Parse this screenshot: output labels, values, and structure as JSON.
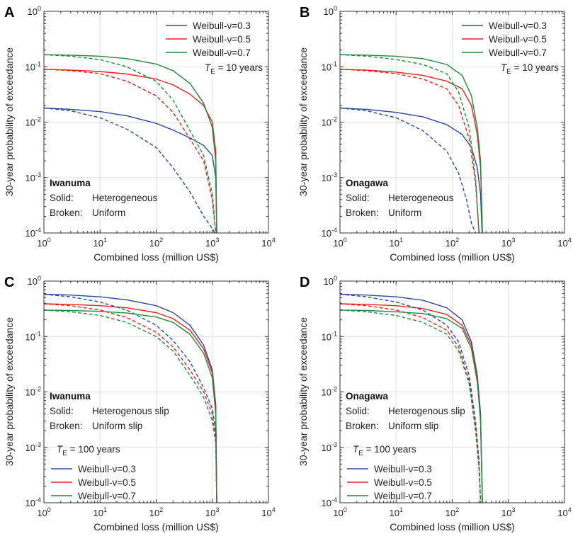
{
  "figure": {
    "ylabel": "30-year probability of exceedance",
    "xlabel": "Combined loss (million US$)"
  },
  "colors": {
    "Weibull-ν=0.3": "#2b4a9c",
    "Weibull-ν=0.5": "#e3231e",
    "Weibull-ν=0.7": "#1f8a3b"
  },
  "chart_data": [
    {
      "panel": "A",
      "type": "line",
      "site": "Iwanuma",
      "xscale": "log",
      "yscale": "log",
      "xlim": [
        1,
        10000
      ],
      "ylim": [
        0.0001,
        1
      ],
      "xlabel": "Combined loss (million US$)",
      "ylabel": "30-year probability of exceedance",
      "xticks": [
        {
          "base": "10",
          "exp": "0"
        },
        {
          "base": "10",
          "exp": "1"
        },
        {
          "base": "10",
          "exp": "2"
        },
        {
          "base": "10",
          "exp": "3"
        },
        {
          "base": "10",
          "exp": "4"
        }
      ],
      "yticks": [
        {
          "base": "10",
          "exp": "-4"
        },
        {
          "base": "10",
          "exp": "-3"
        },
        {
          "base": "10",
          "exp": "-2"
        },
        {
          "base": "10",
          "exp": "-1"
        },
        {
          "base": "10",
          "exp": "0"
        }
      ],
      "te": {
        "prefix": "T",
        "sub": "E",
        "rest": " = 10 years"
      },
      "notes": [
        {
          "key": "Solid:",
          "value": "Heterogeneous"
        },
        {
          "key": "Broken:",
          "value": "Uniform"
        }
      ],
      "legend_position": "top-right",
      "series": [
        {
          "name": "Weibull-ν=0.3",
          "style": "solid",
          "x": [
            1,
            3,
            10,
            30,
            100,
            200,
            400,
            700,
            1000,
            1150,
            1200
          ],
          "y": [
            0.018,
            0.017,
            0.0155,
            0.013,
            0.0095,
            0.0072,
            0.0052,
            0.0038,
            0.0025,
            0.001,
            0.0001
          ]
        },
        {
          "name": "Weibull-ν=0.5",
          "style": "solid",
          "x": [
            1,
            3,
            10,
            30,
            100,
            200,
            400,
            700,
            1000,
            1150,
            1200
          ],
          "y": [
            0.09,
            0.087,
            0.082,
            0.074,
            0.06,
            0.047,
            0.032,
            0.02,
            0.01,
            0.003,
            0.0001
          ]
        },
        {
          "name": "Weibull-ν=0.7",
          "style": "solid",
          "x": [
            1,
            3,
            10,
            30,
            100,
            200,
            400,
            700,
            1000,
            1150,
            1200
          ],
          "y": [
            0.165,
            0.162,
            0.155,
            0.14,
            0.112,
            0.085,
            0.05,
            0.022,
            0.008,
            0.002,
            0.0001
          ]
        },
        {
          "name": "Weibull-ν=0.3",
          "style": "dashed",
          "x": [
            1,
            3,
            10,
            30,
            100,
            200,
            400,
            700,
            1000,
            1100
          ],
          "y": [
            0.018,
            0.016,
            0.012,
            0.0075,
            0.0035,
            0.0015,
            0.00055,
            0.0002,
            0.00012,
            0.0001
          ]
        },
        {
          "name": "Weibull-ν=0.5",
          "style": "dashed",
          "x": [
            1,
            3,
            10,
            30,
            100,
            200,
            400,
            700,
            1000,
            1150
          ],
          "y": [
            0.09,
            0.085,
            0.075,
            0.055,
            0.03,
            0.015,
            0.005,
            0.002,
            0.0004,
            0.0001
          ]
        },
        {
          "name": "Weibull-ν=0.7",
          "style": "dashed",
          "x": [
            1,
            3,
            10,
            30,
            100,
            200,
            400,
            700,
            1000,
            1150
          ],
          "y": [
            0.165,
            0.155,
            0.135,
            0.1,
            0.055,
            0.025,
            0.007,
            0.0025,
            0.0005,
            0.0001
          ]
        }
      ]
    },
    {
      "panel": "B",
      "type": "line",
      "site": "Onagawa",
      "xscale": "log",
      "yscale": "log",
      "xlim": [
        1,
        10000
      ],
      "ylim": [
        0.0001,
        1
      ],
      "xlabel": "Combined loss (million US$)",
      "ylabel": "30-year probability of exceedance",
      "xticks": [
        {
          "base": "10",
          "exp": "0"
        },
        {
          "base": "10",
          "exp": "1"
        },
        {
          "base": "10",
          "exp": "2"
        },
        {
          "base": "10",
          "exp": "3"
        },
        {
          "base": "10",
          "exp": "4"
        }
      ],
      "yticks": [
        {
          "base": "10",
          "exp": "-4"
        },
        {
          "base": "10",
          "exp": "-3"
        },
        {
          "base": "10",
          "exp": "-2"
        },
        {
          "base": "10",
          "exp": "-1"
        },
        {
          "base": "10",
          "exp": "0"
        }
      ],
      "te": {
        "prefix": "T",
        "sub": "E",
        "rest": " = 10 years"
      },
      "notes": [
        {
          "key": "Solid:",
          "value": "Heterogeneous"
        },
        {
          "key": "Broken:",
          "value": "Uniform"
        }
      ],
      "legend_position": "top-right",
      "series": [
        {
          "name": "Weibull-ν=0.3",
          "style": "solid",
          "x": [
            1,
            3,
            10,
            30,
            80,
            150,
            220,
            280,
            320,
            340
          ],
          "y": [
            0.018,
            0.017,
            0.015,
            0.0125,
            0.009,
            0.006,
            0.0035,
            0.0015,
            0.0005,
            0.0001
          ]
        },
        {
          "name": "Weibull-ν=0.5",
          "style": "solid",
          "x": [
            1,
            3,
            10,
            30,
            80,
            150,
            220,
            280,
            320,
            345
          ],
          "y": [
            0.09,
            0.087,
            0.08,
            0.07,
            0.055,
            0.04,
            0.02,
            0.006,
            0.0015,
            0.0001
          ]
        },
        {
          "name": "Weibull-ν=0.7",
          "style": "solid",
          "x": [
            1,
            3,
            10,
            30,
            80,
            150,
            220,
            280,
            320,
            345
          ],
          "y": [
            0.165,
            0.162,
            0.155,
            0.14,
            0.11,
            0.07,
            0.03,
            0.008,
            0.002,
            0.0001
          ]
        },
        {
          "name": "Weibull-ν=0.3",
          "style": "dashed",
          "x": [
            1,
            3,
            10,
            30,
            80,
            130,
            180,
            220,
            260
          ],
          "y": [
            0.018,
            0.016,
            0.012,
            0.007,
            0.003,
            0.0012,
            0.0004,
            0.00015,
            0.0001
          ]
        },
        {
          "name": "Weibull-ν=0.5",
          "style": "dashed",
          "x": [
            1,
            3,
            10,
            30,
            80,
            130,
            200,
            260,
            300
          ],
          "y": [
            0.09,
            0.085,
            0.075,
            0.06,
            0.04,
            0.02,
            0.005,
            0.0008,
            0.0001
          ]
        },
        {
          "name": "Weibull-ν=0.7",
          "style": "dashed",
          "x": [
            1,
            3,
            10,
            30,
            80,
            130,
            200,
            260,
            300
          ],
          "y": [
            0.165,
            0.155,
            0.135,
            0.11,
            0.075,
            0.035,
            0.008,
            0.001,
            0.0001
          ]
        }
      ]
    },
    {
      "panel": "C",
      "type": "line",
      "site": "Iwanuma",
      "xscale": "log",
      "yscale": "log",
      "xlim": [
        1,
        10000
      ],
      "ylim": [
        0.0001,
        1
      ],
      "xlabel": "Combined loss (million US$)",
      "ylabel": "30-year probability of exceedance",
      "xticks": [
        {
          "base": "10",
          "exp": "0"
        },
        {
          "base": "10",
          "exp": "1"
        },
        {
          "base": "10",
          "exp": "2"
        },
        {
          "base": "10",
          "exp": "3"
        },
        {
          "base": "10",
          "exp": "4"
        }
      ],
      "yticks": [
        {
          "base": "10",
          "exp": "-4"
        },
        {
          "base": "10",
          "exp": "-3"
        },
        {
          "base": "10",
          "exp": "-2"
        },
        {
          "base": "10",
          "exp": "-1"
        },
        {
          "base": "10",
          "exp": "0"
        }
      ],
      "te": {
        "prefix": "T",
        "sub": "E",
        "rest": " = 100 years"
      },
      "notes": [
        {
          "key": "Solid:",
          "value": "Heterogenous slip"
        },
        {
          "key": "Broken:",
          "value": "Uniform slip"
        }
      ],
      "legend_position": "bottom-left",
      "series": [
        {
          "name": "Weibull-ν=0.3",
          "style": "solid",
          "x": [
            1,
            3,
            10,
            30,
            100,
            200,
            400,
            700,
            1000,
            1150,
            1200
          ],
          "y": [
            0.58,
            0.56,
            0.52,
            0.46,
            0.36,
            0.27,
            0.16,
            0.07,
            0.025,
            0.006,
            0.0001
          ]
        },
        {
          "name": "Weibull-ν=0.5",
          "style": "solid",
          "x": [
            1,
            3,
            10,
            30,
            100,
            200,
            400,
            700,
            1000,
            1150,
            1200
          ],
          "y": [
            0.39,
            0.38,
            0.36,
            0.33,
            0.27,
            0.21,
            0.13,
            0.06,
            0.022,
            0.005,
            0.0001
          ]
        },
        {
          "name": "Weibull-ν=0.7",
          "style": "solid",
          "x": [
            1,
            3,
            10,
            30,
            100,
            200,
            400,
            700,
            1000,
            1150,
            1200
          ],
          "y": [
            0.3,
            0.295,
            0.285,
            0.265,
            0.225,
            0.18,
            0.11,
            0.05,
            0.018,
            0.004,
            0.0001
          ]
        },
        {
          "name": "Weibull-ν=0.3",
          "style": "dashed",
          "x": [
            1,
            3,
            10,
            30,
            100,
            200,
            400,
            700,
            1000,
            1150,
            1200
          ],
          "y": [
            0.58,
            0.52,
            0.42,
            0.3,
            0.16,
            0.085,
            0.035,
            0.012,
            0.005,
            0.002,
            0.0001
          ]
        },
        {
          "name": "Weibull-ν=0.5",
          "style": "dashed",
          "x": [
            1,
            3,
            10,
            30,
            100,
            200,
            400,
            700,
            1000,
            1150,
            1200
          ],
          "y": [
            0.39,
            0.36,
            0.3,
            0.22,
            0.12,
            0.065,
            0.025,
            0.01,
            0.004,
            0.0015,
            0.0001
          ]
        },
        {
          "name": "Weibull-ν=0.7",
          "style": "dashed",
          "x": [
            1,
            3,
            10,
            30,
            100,
            200,
            400,
            700,
            1000,
            1150,
            1200
          ],
          "y": [
            0.3,
            0.28,
            0.24,
            0.18,
            0.1,
            0.055,
            0.02,
            0.008,
            0.003,
            0.0012,
            0.0001
          ]
        }
      ]
    },
    {
      "panel": "D",
      "type": "line",
      "site": "Onagawa",
      "xscale": "log",
      "yscale": "log",
      "xlim": [
        1,
        10000
      ],
      "ylim": [
        0.0001,
        1
      ],
      "xlabel": "Combined loss (million US$)",
      "ylabel": "30-year probability of exceedance",
      "xticks": [
        {
          "base": "10",
          "exp": "0"
        },
        {
          "base": "10",
          "exp": "1"
        },
        {
          "base": "10",
          "exp": "2"
        },
        {
          "base": "10",
          "exp": "3"
        },
        {
          "base": "10",
          "exp": "4"
        }
      ],
      "yticks": [
        {
          "base": "10",
          "exp": "-4"
        },
        {
          "base": "10",
          "exp": "-3"
        },
        {
          "base": "10",
          "exp": "-2"
        },
        {
          "base": "10",
          "exp": "-1"
        },
        {
          "base": "10",
          "exp": "0"
        }
      ],
      "te": {
        "prefix": "T",
        "sub": "E",
        "rest": " = 100 years"
      },
      "notes": [
        {
          "key": "Solid:",
          "value": "Heterogenous slip"
        },
        {
          "key": "Broken:",
          "value": "Uniform slip"
        }
      ],
      "legend_position": "bottom-left",
      "series": [
        {
          "name": "Weibull-ν=0.3",
          "style": "solid",
          "x": [
            1,
            3,
            10,
            30,
            80,
            150,
            220,
            280,
            320,
            345
          ],
          "y": [
            0.58,
            0.56,
            0.52,
            0.45,
            0.33,
            0.2,
            0.08,
            0.02,
            0.004,
            0.0001
          ]
        },
        {
          "name": "Weibull-ν=0.5",
          "style": "solid",
          "x": [
            1,
            3,
            10,
            30,
            80,
            150,
            220,
            280,
            320,
            345
          ],
          "y": [
            0.39,
            0.38,
            0.36,
            0.32,
            0.25,
            0.16,
            0.07,
            0.018,
            0.003,
            0.0001
          ]
        },
        {
          "name": "Weibull-ν=0.7",
          "style": "solid",
          "x": [
            1,
            3,
            10,
            30,
            80,
            150,
            220,
            280,
            320,
            345
          ],
          "y": [
            0.3,
            0.295,
            0.28,
            0.26,
            0.21,
            0.14,
            0.06,
            0.015,
            0.003,
            0.0001
          ]
        },
        {
          "name": "Weibull-ν=0.3",
          "style": "dashed",
          "x": [
            1,
            3,
            10,
            30,
            80,
            130,
            200,
            260,
            300,
            320
          ],
          "y": [
            0.58,
            0.52,
            0.42,
            0.3,
            0.16,
            0.08,
            0.02,
            0.003,
            0.0006,
            0.0001
          ]
        },
        {
          "name": "Weibull-ν=0.5",
          "style": "dashed",
          "x": [
            1,
            3,
            10,
            30,
            80,
            130,
            200,
            260,
            300,
            320
          ],
          "y": [
            0.39,
            0.36,
            0.3,
            0.22,
            0.13,
            0.065,
            0.016,
            0.0025,
            0.0005,
            0.0001
          ]
        },
        {
          "name": "Weibull-ν=0.7",
          "style": "dashed",
          "x": [
            1,
            3,
            10,
            30,
            80,
            130,
            200,
            260,
            300,
            320
          ],
          "y": [
            0.3,
            0.28,
            0.24,
            0.18,
            0.11,
            0.055,
            0.014,
            0.002,
            0.0004,
            0.0001
          ]
        }
      ]
    }
  ]
}
